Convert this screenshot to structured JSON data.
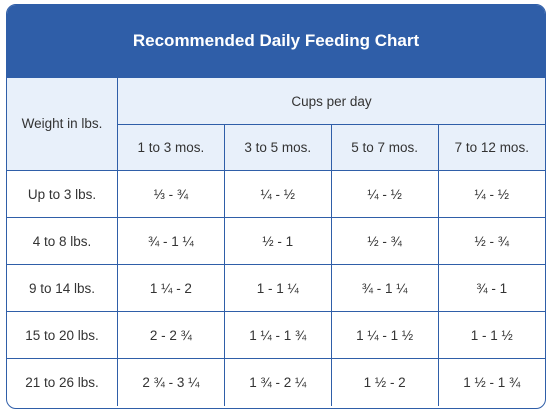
{
  "title": "Recommended Daily Feeding Chart",
  "header": {
    "weight": "Weight in lbs.",
    "group": "Cups per day",
    "ages": [
      "1 to 3 mos.",
      "3 to 5 mos.",
      "5 to 7 mos.",
      "7 to 12 mos."
    ]
  },
  "rows": [
    {
      "weight": "Up to 3 lbs.",
      "cups": [
        "⅓ - ¾",
        "¼ - ½",
        "¼ - ½",
        "¼ - ½"
      ]
    },
    {
      "weight": "4 to 8 lbs.",
      "cups": [
        "¾ - 1 ¼",
        "½ - 1",
        "½ - ¾",
        "½ - ¾"
      ]
    },
    {
      "weight": "9 to 14 lbs.",
      "cups": [
        "1 ¼ - 2",
        "1 - 1 ¼",
        "¾ - 1 ¼",
        "¾ - 1"
      ]
    },
    {
      "weight": "15 to 20 lbs.",
      "cups": [
        "2 - 2 ¾",
        "1 ¼ - 1 ¾",
        "1 ¼ - 1 ½",
        "1 - 1 ½"
      ]
    },
    {
      "weight": "21 to 26 lbs.",
      "cups": [
        "2 ¾ - 3 ¼",
        "1 ¾ - 2 ¼",
        "1 ½ - 2",
        "1 ½ - 1 ¾"
      ]
    }
  ],
  "colors": {
    "accent": "#2f5ea8",
    "header_bg": "#e8f0fa",
    "text": "#333333"
  }
}
